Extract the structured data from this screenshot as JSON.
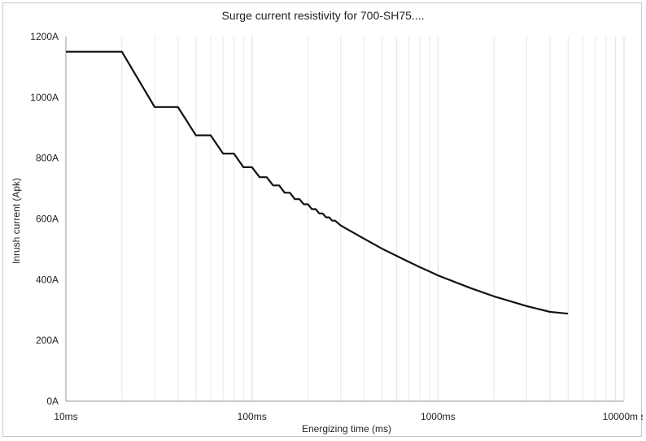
{
  "chart_data": {
    "type": "line",
    "title": "Surge current resistivity for 700-SH75....",
    "xlabel": "Energizing time (ms)",
    "ylabel": "Inrush current (Apk)",
    "x_scale": "log",
    "xlim": [
      10,
      10000
    ],
    "ylim": [
      0,
      1200
    ],
    "x_ticks": [
      10,
      100,
      1000,
      10000
    ],
    "x_tick_labels": [
      "10ms",
      "100ms",
      "1000ms",
      "10000m s"
    ],
    "y_ticks": [
      0,
      200,
      400,
      600,
      800,
      1000,
      1200
    ],
    "y_tick_labels": [
      "0A",
      "200A",
      "400A",
      "600A",
      "800A",
      "1000A",
      "1200A"
    ],
    "grid": {
      "x_minor": true,
      "y": false
    },
    "legend": "none",
    "line_color": "#111111",
    "series": [
      {
        "values": [
          [
            10,
            1150
          ],
          [
            20,
            1150
          ],
          [
            30,
            968
          ],
          [
            40,
            968
          ],
          [
            50,
            875
          ],
          [
            60,
            875
          ],
          [
            70,
            815
          ],
          [
            80,
            815
          ],
          [
            90,
            770
          ],
          [
            100,
            770
          ],
          [
            110,
            737
          ],
          [
            120,
            737
          ],
          [
            130,
            710
          ],
          [
            140,
            710
          ],
          [
            150,
            686
          ],
          [
            160,
            686
          ],
          [
            170,
            665
          ],
          [
            180,
            665
          ],
          [
            190,
            648
          ],
          [
            200,
            648
          ],
          [
            210,
            632
          ],
          [
            220,
            632
          ],
          [
            230,
            618
          ],
          [
            240,
            618
          ],
          [
            250,
            605
          ],
          [
            260,
            605
          ],
          [
            270,
            594
          ],
          [
            280,
            594
          ],
          [
            300,
            578
          ],
          [
            400,
            535
          ],
          [
            500,
            502
          ],
          [
            600,
            478
          ],
          [
            700,
            458
          ],
          [
            800,
            441
          ],
          [
            900,
            427
          ],
          [
            1000,
            414
          ],
          [
            1500,
            372
          ],
          [
            2000,
            345
          ],
          [
            3000,
            313
          ],
          [
            4000,
            294
          ],
          [
            5000,
            288
          ]
        ]
      }
    ]
  }
}
